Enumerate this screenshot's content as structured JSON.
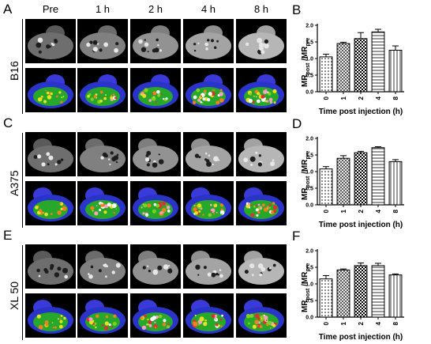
{
  "panels": {
    "A": "A",
    "B": "B",
    "C": "C",
    "D": "D",
    "E": "E",
    "F": "F"
  },
  "timepoints": [
    "Pre",
    "1 h",
    "2 h",
    "4 h",
    "8 h"
  ],
  "rows": [
    {
      "label": "B16"
    },
    {
      "label": "A375"
    },
    {
      "label": "XL 50"
    }
  ],
  "chart_data": [
    {
      "type": "bar",
      "panel": "B",
      "categories": [
        "0",
        "1",
        "2",
        "4",
        "8"
      ],
      "values": [
        1.05,
        1.45,
        1.6,
        1.8,
        1.25
      ],
      "errors": [
        0.08,
        0.04,
        0.18,
        0.08,
        0.13
      ],
      "ylim": [
        0,
        2.0
      ],
      "yticks": [
        "0.0",
        "0.5",
        "1.0",
        "1.5",
        "2.0"
      ],
      "ylabel_main": "MR",
      "ylabel_sub1": "post",
      "ylabel_mid": " /MR",
      "ylabel_sub2": "pre",
      "xlabel": "Time post injection (h)"
    },
    {
      "type": "bar",
      "panel": "D",
      "categories": [
        "0",
        "1",
        "2",
        "4",
        "8"
      ],
      "values": [
        1.08,
        1.4,
        1.57,
        1.72,
        1.3
      ],
      "errors": [
        0.07,
        0.08,
        0.04,
        0.03,
        0.06
      ],
      "ylim": [
        0,
        2.0
      ],
      "yticks": [
        "0.0",
        "0.5",
        "1.0",
        "1.5",
        "2.0"
      ],
      "ylabel_main": "MR",
      "ylabel_sub1": "post",
      "ylabel_mid": " /MR",
      "ylabel_sub2": "pre",
      "xlabel": "Time post injection (h)"
    },
    {
      "type": "bar",
      "panel": "F",
      "categories": [
        "0",
        "1",
        "2",
        "4",
        "8"
      ],
      "values": [
        1.15,
        1.42,
        1.55,
        1.55,
        1.27
      ],
      "errors": [
        0.1,
        0.03,
        0.08,
        0.07,
        0.03
      ],
      "ylim": [
        0,
        2.0
      ],
      "yticks": [
        "0.0",
        "0.5",
        "1.0",
        "1.5",
        "2.0"
      ],
      "ylabel_main": "MR",
      "ylabel_sub1": "post",
      "ylabel_mid": " /MR",
      "ylabel_sub2": "pre",
      "xlabel": "Time post injection (h)"
    }
  ],
  "colors": {
    "bar_fill": "#ffffff",
    "bar_stroke": "#000000",
    "tile_bg": "#000000"
  }
}
